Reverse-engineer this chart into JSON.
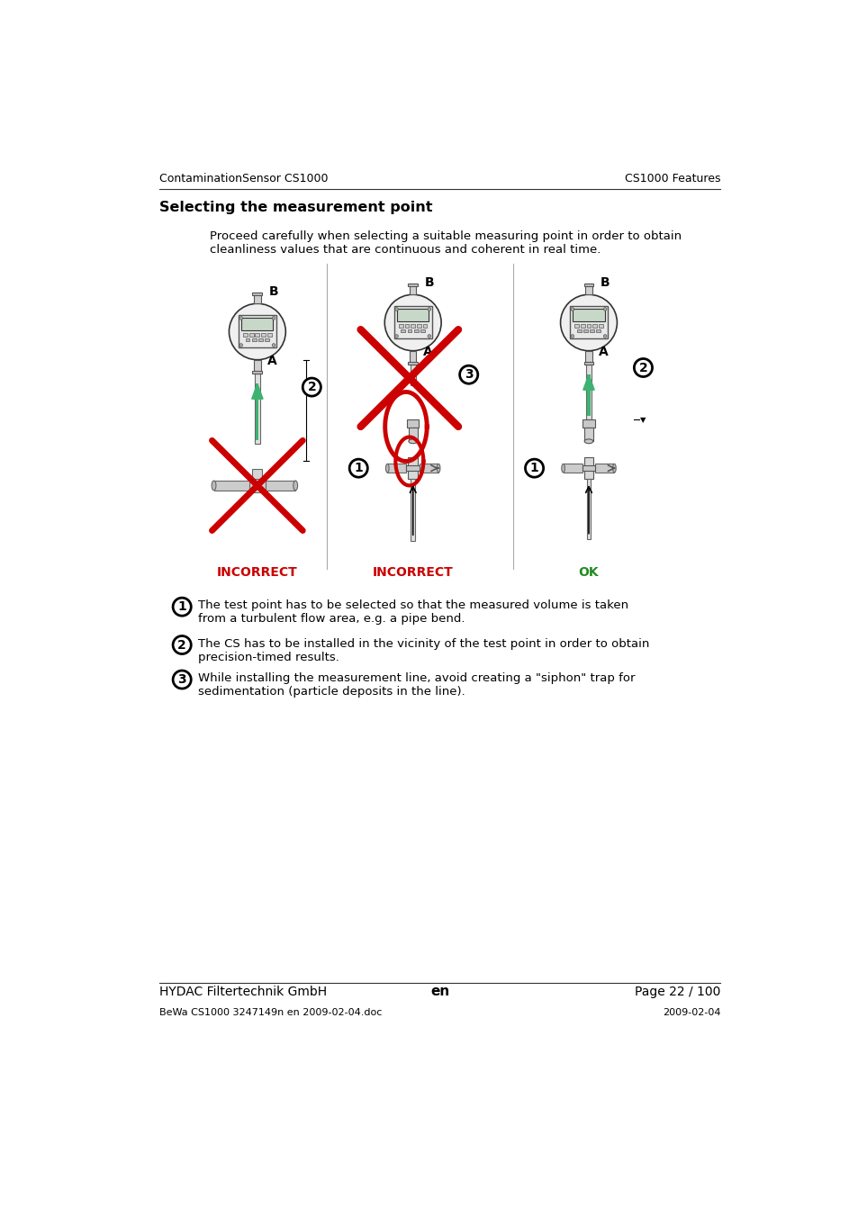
{
  "header_left": "ContaminationSensor CS1000",
  "header_right": "CS1000 Features",
  "title": "Selecting the measurement point",
  "intro_text": "Proceed carefully when selecting a suitable measuring point in order to obtain\ncleanliness values that are continuous and coherent in real time.",
  "label_incorrect1": "INCORRECT",
  "label_incorrect2": "INCORRECT",
  "label_ok": "OK",
  "label_incorrect_color": "#cc0000",
  "label_ok_color": "#228b22",
  "item1_text": "The test point has to be selected so that the measured volume is taken\nfrom a turbulent flow area, e.g. a pipe bend.",
  "item2_text": "The CS has to be installed in the vicinity of the test point in order to obtain\nprecision-timed results.",
  "item3_text": "While installing the measurement line, avoid creating a \"siphon\" trap for\nsedimentation (particle deposits in the line).",
  "footer_left": "HYDAC Filtertechnik GmbH",
  "footer_center": "en",
  "footer_right": "Page 22 / 100",
  "footer_small_left": "BeWa CS1000 3247149n en 2009-02-04.doc",
  "footer_small_right": "2009-02-04",
  "bg_color": "#ffffff",
  "text_color": "#000000",
  "line_color": "#000000",
  "sep_color": "#aaaaaa",
  "green_color": "#3cb371",
  "red_color": "#cc0000"
}
